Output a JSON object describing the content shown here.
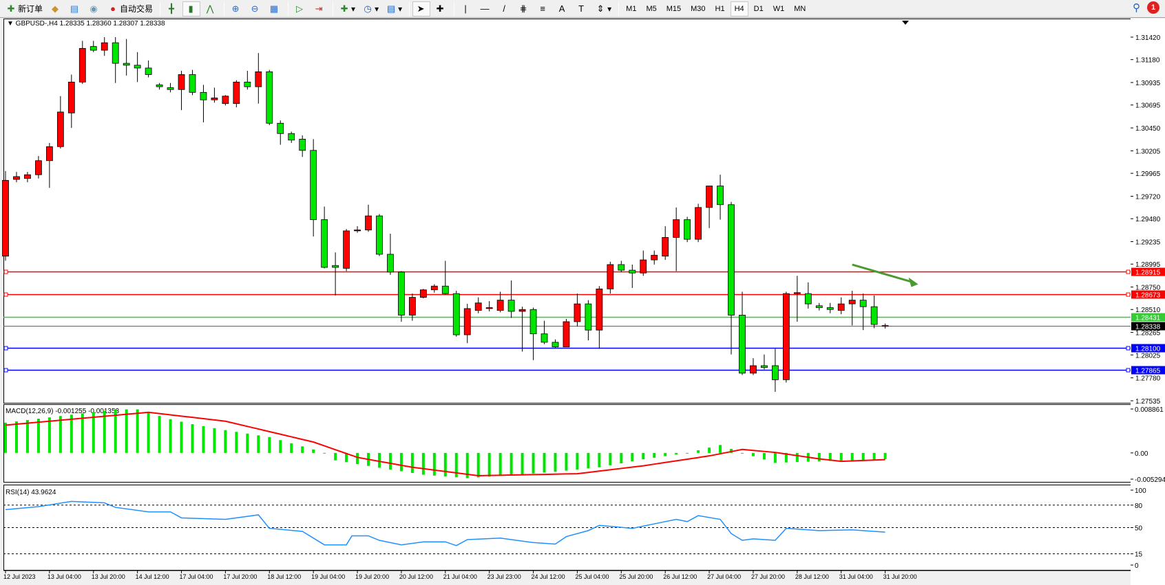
{
  "toolbar": {
    "new_order": "新订单",
    "auto_trading": "自动交易",
    "timeframes": [
      "M1",
      "M5",
      "M15",
      "M30",
      "H1",
      "H4",
      "D1",
      "W1",
      "MN"
    ],
    "active_timeframe": "H4",
    "notification_count": "1",
    "icons": [
      "new-order-icon",
      "expert-icon",
      "market-watch-icon",
      "signals-icon",
      "auto-trading-icon",
      "bar-chart-icon",
      "candlestick-icon",
      "line-chart-icon",
      "zoom-in-icon",
      "zoom-out-icon",
      "tile-windows-icon",
      "auto-scroll-icon",
      "chart-shift-icon",
      "indicators-icon",
      "periods-icon",
      "templates-icon",
      "cursor-icon",
      "crosshair-icon",
      "vertical-line-icon",
      "horizontal-line-icon",
      "trendline-icon",
      "equidistant-channel-icon",
      "fibonacci-icon",
      "text-icon",
      "text-label-icon",
      "arrows-icon"
    ]
  },
  "chart": {
    "header": "GBPUSD-,H4  1.28335 1.28360 1.28307 1.28338",
    "colors": {
      "up": "#ff0000",
      "down": "#00e600",
      "background": "#ffffff"
    },
    "price_ticks": [
      "1.31420",
      "1.31180",
      "1.30935",
      "1.30695",
      "1.30450",
      "1.30205",
      "1.29965",
      "1.29720",
      "1.29480",
      "1.29235",
      "1.28995",
      "1.28750",
      "1.28510",
      "1.28265",
      "1.28025",
      "1.27780",
      "1.27535"
    ],
    "price_range": [
      1.27535,
      1.3142
    ],
    "hlines": [
      {
        "price": "1.28915",
        "color": "#ff0000"
      },
      {
        "price": "1.28673",
        "color": "#ff0000"
      },
      {
        "price": "1.28431",
        "color": "#33cc33"
      },
      {
        "price": "1.28338",
        "color": "#000000",
        "current": true
      },
      {
        "price": "1.28100",
        "color": "#0000ff"
      },
      {
        "price": "1.27865",
        "color": "#0000ff"
      }
    ],
    "arrow": {
      "from": [
        77,
        1.2899
      ],
      "to": [
        83,
        1.2878
      ],
      "color": "#4a9a30"
    },
    "candles": [
      [
        1.2908,
        1.2999,
        1.2903,
        1.2989
      ],
      [
        1.299,
        1.2998,
        1.2987,
        1.2993
      ],
      [
        1.2991,
        1.2998,
        1.2987,
        1.2995
      ],
      [
        1.2995,
        1.3015,
        1.2991,
        1.301
      ],
      [
        1.301,
        1.3029,
        1.2981,
        1.3025
      ],
      [
        1.3025,
        1.3079,
        1.3023,
        1.3062
      ],
      [
        1.3061,
        1.3102,
        1.3045,
        1.3094
      ],
      [
        1.3094,
        1.3138,
        1.3092,
        1.313
      ],
      [
        1.3132,
        1.3138,
        1.3126,
        1.3128
      ],
      [
        1.3128,
        1.3142,
        1.3122,
        1.3136
      ],
      [
        1.3136,
        1.3142,
        1.3093,
        1.3114
      ],
      [
        1.3114,
        1.314,
        1.3101,
        1.3112
      ],
      [
        1.3112,
        1.3126,
        1.3094,
        1.3109
      ],
      [
        1.3109,
        1.3117,
        1.3099,
        1.3102
      ],
      [
        1.3091,
        1.3093,
        1.3086,
        1.3089
      ],
      [
        1.3088,
        1.3093,
        1.3083,
        1.3086
      ],
      [
        1.3086,
        1.3106,
        1.3064,
        1.3102
      ],
      [
        1.3102,
        1.3107,
        1.308,
        1.3083
      ],
      [
        1.3083,
        1.3091,
        1.3051,
        1.3075
      ],
      [
        1.3075,
        1.3088,
        1.3072,
        1.3077
      ],
      [
        1.3071,
        1.308,
        1.3069,
        1.3079
      ],
      [
        1.3071,
        1.3096,
        1.3067,
        1.3094
      ],
      [
        1.3094,
        1.3106,
        1.3086,
        1.3089
      ],
      [
        1.3089,
        1.3125,
        1.3071,
        1.3105
      ],
      [
        1.3105,
        1.3107,
        1.3048,
        1.305
      ],
      [
        1.305,
        1.3053,
        1.3027,
        1.3039
      ],
      [
        1.3039,
        1.3041,
        1.3029,
        1.3032
      ],
      [
        1.3033,
        1.3037,
        1.3014,
        1.3021
      ],
      [
        1.3021,
        1.3033,
        1.2929,
        1.2947
      ],
      [
        1.2947,
        1.2961,
        1.2895,
        1.2896
      ],
      [
        1.2898,
        1.2912,
        1.2866,
        1.2896
      ],
      [
        1.2895,
        1.2937,
        1.2892,
        1.2935
      ],
      [
        1.2935,
        1.294,
        1.2933,
        1.2936
      ],
      [
        1.2936,
        1.2963,
        1.2934,
        1.2951
      ],
      [
        1.2951,
        1.2953,
        1.2908,
        1.291
      ],
      [
        1.291,
        1.2932,
        1.2888,
        1.2891
      ],
      [
        1.2891,
        1.2892,
        1.2838,
        1.2845
      ],
      [
        1.2845,
        1.2868,
        1.2839,
        1.2864
      ],
      [
        1.2864,
        1.2873,
        1.2863,
        1.2872
      ],
      [
        1.2872,
        1.2878,
        1.2869,
        1.2876
      ],
      [
        1.2876,
        1.2903,
        1.2867,
        1.2868
      ],
      [
        1.2868,
        1.2871,
        1.2822,
        1.2824
      ],
      [
        1.2824,
        1.2857,
        1.2815,
        1.2852
      ],
      [
        1.285,
        1.2864,
        1.2847,
        1.2858
      ],
      [
        1.2852,
        1.286,
        1.2849,
        1.2853
      ],
      [
        1.285,
        1.287,
        1.2848,
        1.2861
      ],
      [
        1.2861,
        1.2882,
        1.2842,
        1.2849
      ],
      [
        1.2849,
        1.2854,
        1.2806,
        1.2851
      ],
      [
        1.2851,
        1.2853,
        1.2797,
        1.2825
      ],
      [
        1.2825,
        1.2839,
        1.2814,
        1.2816
      ],
      [
        1.2816,
        1.2819,
        1.281,
        1.2811
      ],
      [
        1.2811,
        1.2841,
        1.2811,
        1.2838
      ],
      [
        1.2838,
        1.2868,
        1.2833,
        1.2857
      ],
      [
        1.2857,
        1.2861,
        1.2818,
        1.2829
      ],
      [
        1.2829,
        1.2876,
        1.2809,
        1.2873
      ],
      [
        1.2873,
        1.2902,
        1.2868,
        1.2899
      ],
      [
        1.2899,
        1.2903,
        1.2891,
        1.2893
      ],
      [
        1.2893,
        1.2899,
        1.2874,
        1.289
      ],
      [
        1.289,
        1.2914,
        1.2887,
        1.2904
      ],
      [
        1.2904,
        1.2914,
        1.2899,
        1.2909
      ],
      [
        1.2908,
        1.294,
        1.2904,
        1.2928
      ],
      [
        1.2928,
        1.296,
        1.2892,
        1.2947
      ],
      [
        1.2947,
        1.295,
        1.2923,
        1.2926
      ],
      [
        1.2926,
        1.2964,
        1.2923,
        1.296
      ],
      [
        1.296,
        1.2983,
        1.2938,
        1.2983
      ],
      [
        1.2983,
        1.2995,
        1.2947,
        1.2963
      ],
      [
        1.2963,
        1.2966,
        1.2803,
        1.2845
      ],
      [
        1.2845,
        1.287,
        1.2781,
        1.2783
      ],
      [
        1.2783,
        1.2799,
        1.2781,
        1.2791
      ],
      [
        1.2791,
        1.2803,
        1.2787,
        1.2789
      ],
      [
        1.2791,
        1.2809,
        1.2763,
        1.2776
      ],
      [
        1.2776,
        1.287,
        1.2773,
        1.2868
      ],
      [
        1.2868,
        1.2887,
        1.2838,
        1.2869
      ],
      [
        1.2868,
        1.288,
        1.2852,
        1.2857
      ],
      [
        1.2855,
        1.2858,
        1.285,
        1.2853
      ],
      [
        1.2853,
        1.2858,
        1.2847,
        1.2851
      ],
      [
        1.285,
        1.2864,
        1.2846,
        1.2857
      ],
      [
        1.2857,
        1.2871,
        1.2834,
        1.2861
      ],
      [
        1.2861,
        1.2868,
        1.2829,
        1.2854
      ],
      [
        1.2854,
        1.2866,
        1.2831,
        1.2835
      ],
      [
        1.28335,
        1.2836,
        1.28307,
        1.28338
      ]
    ],
    "time_labels": [
      "12 Jul 2023",
      "13 Jul 04:00",
      "13 Jul 20:00",
      "14 Jul 12:00",
      "17 Jul 04:00",
      "17 Jul 20:00",
      "18 Jul 12:00",
      "19 Jul 04:00",
      "19 Jul 20:00",
      "20 Jul 12:00",
      "21 Jul 04:00",
      "23 Jul 23:00",
      "24 Jul 12:00",
      "25 Jul 04:00",
      "25 Jul 20:00",
      "26 Jul 12:00",
      "27 Jul 04:00",
      "27 Jul 20:00",
      "28 Jul 12:00",
      "31 Jul 04:00",
      "31 Jul 20:00"
    ]
  },
  "macd": {
    "label": "MACD(12,26,9) -0.001255 -0.001353",
    "ticks": [
      "0.008861",
      "0.00",
      "-0.005294"
    ],
    "range": [
      -0.005294,
      0.008861
    ],
    "hist_color": "#00e600",
    "signal_color": "#ff0000",
    "histogram_points": [
      [
        0,
        0.0061
      ],
      [
        10,
        0.0088
      ],
      [
        12,
        0.0088
      ],
      [
        15,
        0.0068
      ],
      [
        17,
        0.0058
      ],
      [
        20,
        0.0046
      ],
      [
        24,
        0.0032
      ],
      [
        28,
        0.0007
      ],
      [
        29,
        0.0
      ],
      [
        30,
        -0.0015
      ],
      [
        34,
        -0.003
      ],
      [
        38,
        -0.0044
      ],
      [
        42,
        -0.0051
      ],
      [
        46,
        -0.0045
      ],
      [
        50,
        -0.0038
      ],
      [
        54,
        -0.0029
      ],
      [
        58,
        -0.0013
      ],
      [
        62,
        0.0
      ],
      [
        65,
        0.0016
      ],
      [
        67,
        0.0
      ],
      [
        70,
        -0.002
      ],
      [
        74,
        -0.0017
      ],
      [
        80,
        -0.001255
      ]
    ],
    "signal_points": [
      [
        0,
        0.0056
      ],
      [
        13,
        0.0082
      ],
      [
        20,
        0.0064
      ],
      [
        28,
        0.0022
      ],
      [
        32,
        -0.0009
      ],
      [
        37,
        -0.0029
      ],
      [
        43,
        -0.0046
      ],
      [
        52,
        -0.0042
      ],
      [
        58,
        -0.0026
      ],
      [
        64,
        -0.0006
      ],
      [
        67,
        0.0007
      ],
      [
        70,
        0.0001
      ],
      [
        74,
        -0.0012
      ],
      [
        76,
        -0.0017
      ],
      [
        80,
        -0.001353
      ]
    ]
  },
  "rsi": {
    "label": "RSI(14) 43.9624",
    "ticks": [
      "100",
      "80",
      "50",
      "15",
      "0"
    ],
    "levels": [
      80,
      50,
      15
    ],
    "color": "#1e90ff",
    "points": [
      [
        0,
        74
      ],
      [
        3,
        78
      ],
      [
        6,
        85
      ],
      [
        9,
        83
      ],
      [
        10,
        77
      ],
      [
        13,
        71
      ],
      [
        15,
        71
      ],
      [
        16,
        63
      ],
      [
        20,
        61
      ],
      [
        23,
        67
      ],
      [
        24,
        49
      ],
      [
        27,
        45
      ],
      [
        29,
        27
      ],
      [
        31,
        27
      ],
      [
        31.5,
        39
      ],
      [
        33,
        39
      ],
      [
        34,
        33
      ],
      [
        36,
        27
      ],
      [
        38,
        31
      ],
      [
        40,
        31
      ],
      [
        41,
        26
      ],
      [
        42,
        34
      ],
      [
        45,
        36
      ],
      [
        48,
        30
      ],
      [
        50,
        28
      ],
      [
        51,
        38
      ],
      [
        53,
        46
      ],
      [
        54,
        53
      ],
      [
        57,
        49
      ],
      [
        59,
        55
      ],
      [
        61,
        61
      ],
      [
        62,
        58
      ],
      [
        63,
        66
      ],
      [
        65,
        61
      ],
      [
        66,
        42
      ],
      [
        67,
        33
      ],
      [
        68,
        35
      ],
      [
        70,
        33
      ],
      [
        71,
        49
      ],
      [
        74,
        46
      ],
      [
        77,
        47
      ],
      [
        80,
        43.9624
      ]
    ]
  }
}
